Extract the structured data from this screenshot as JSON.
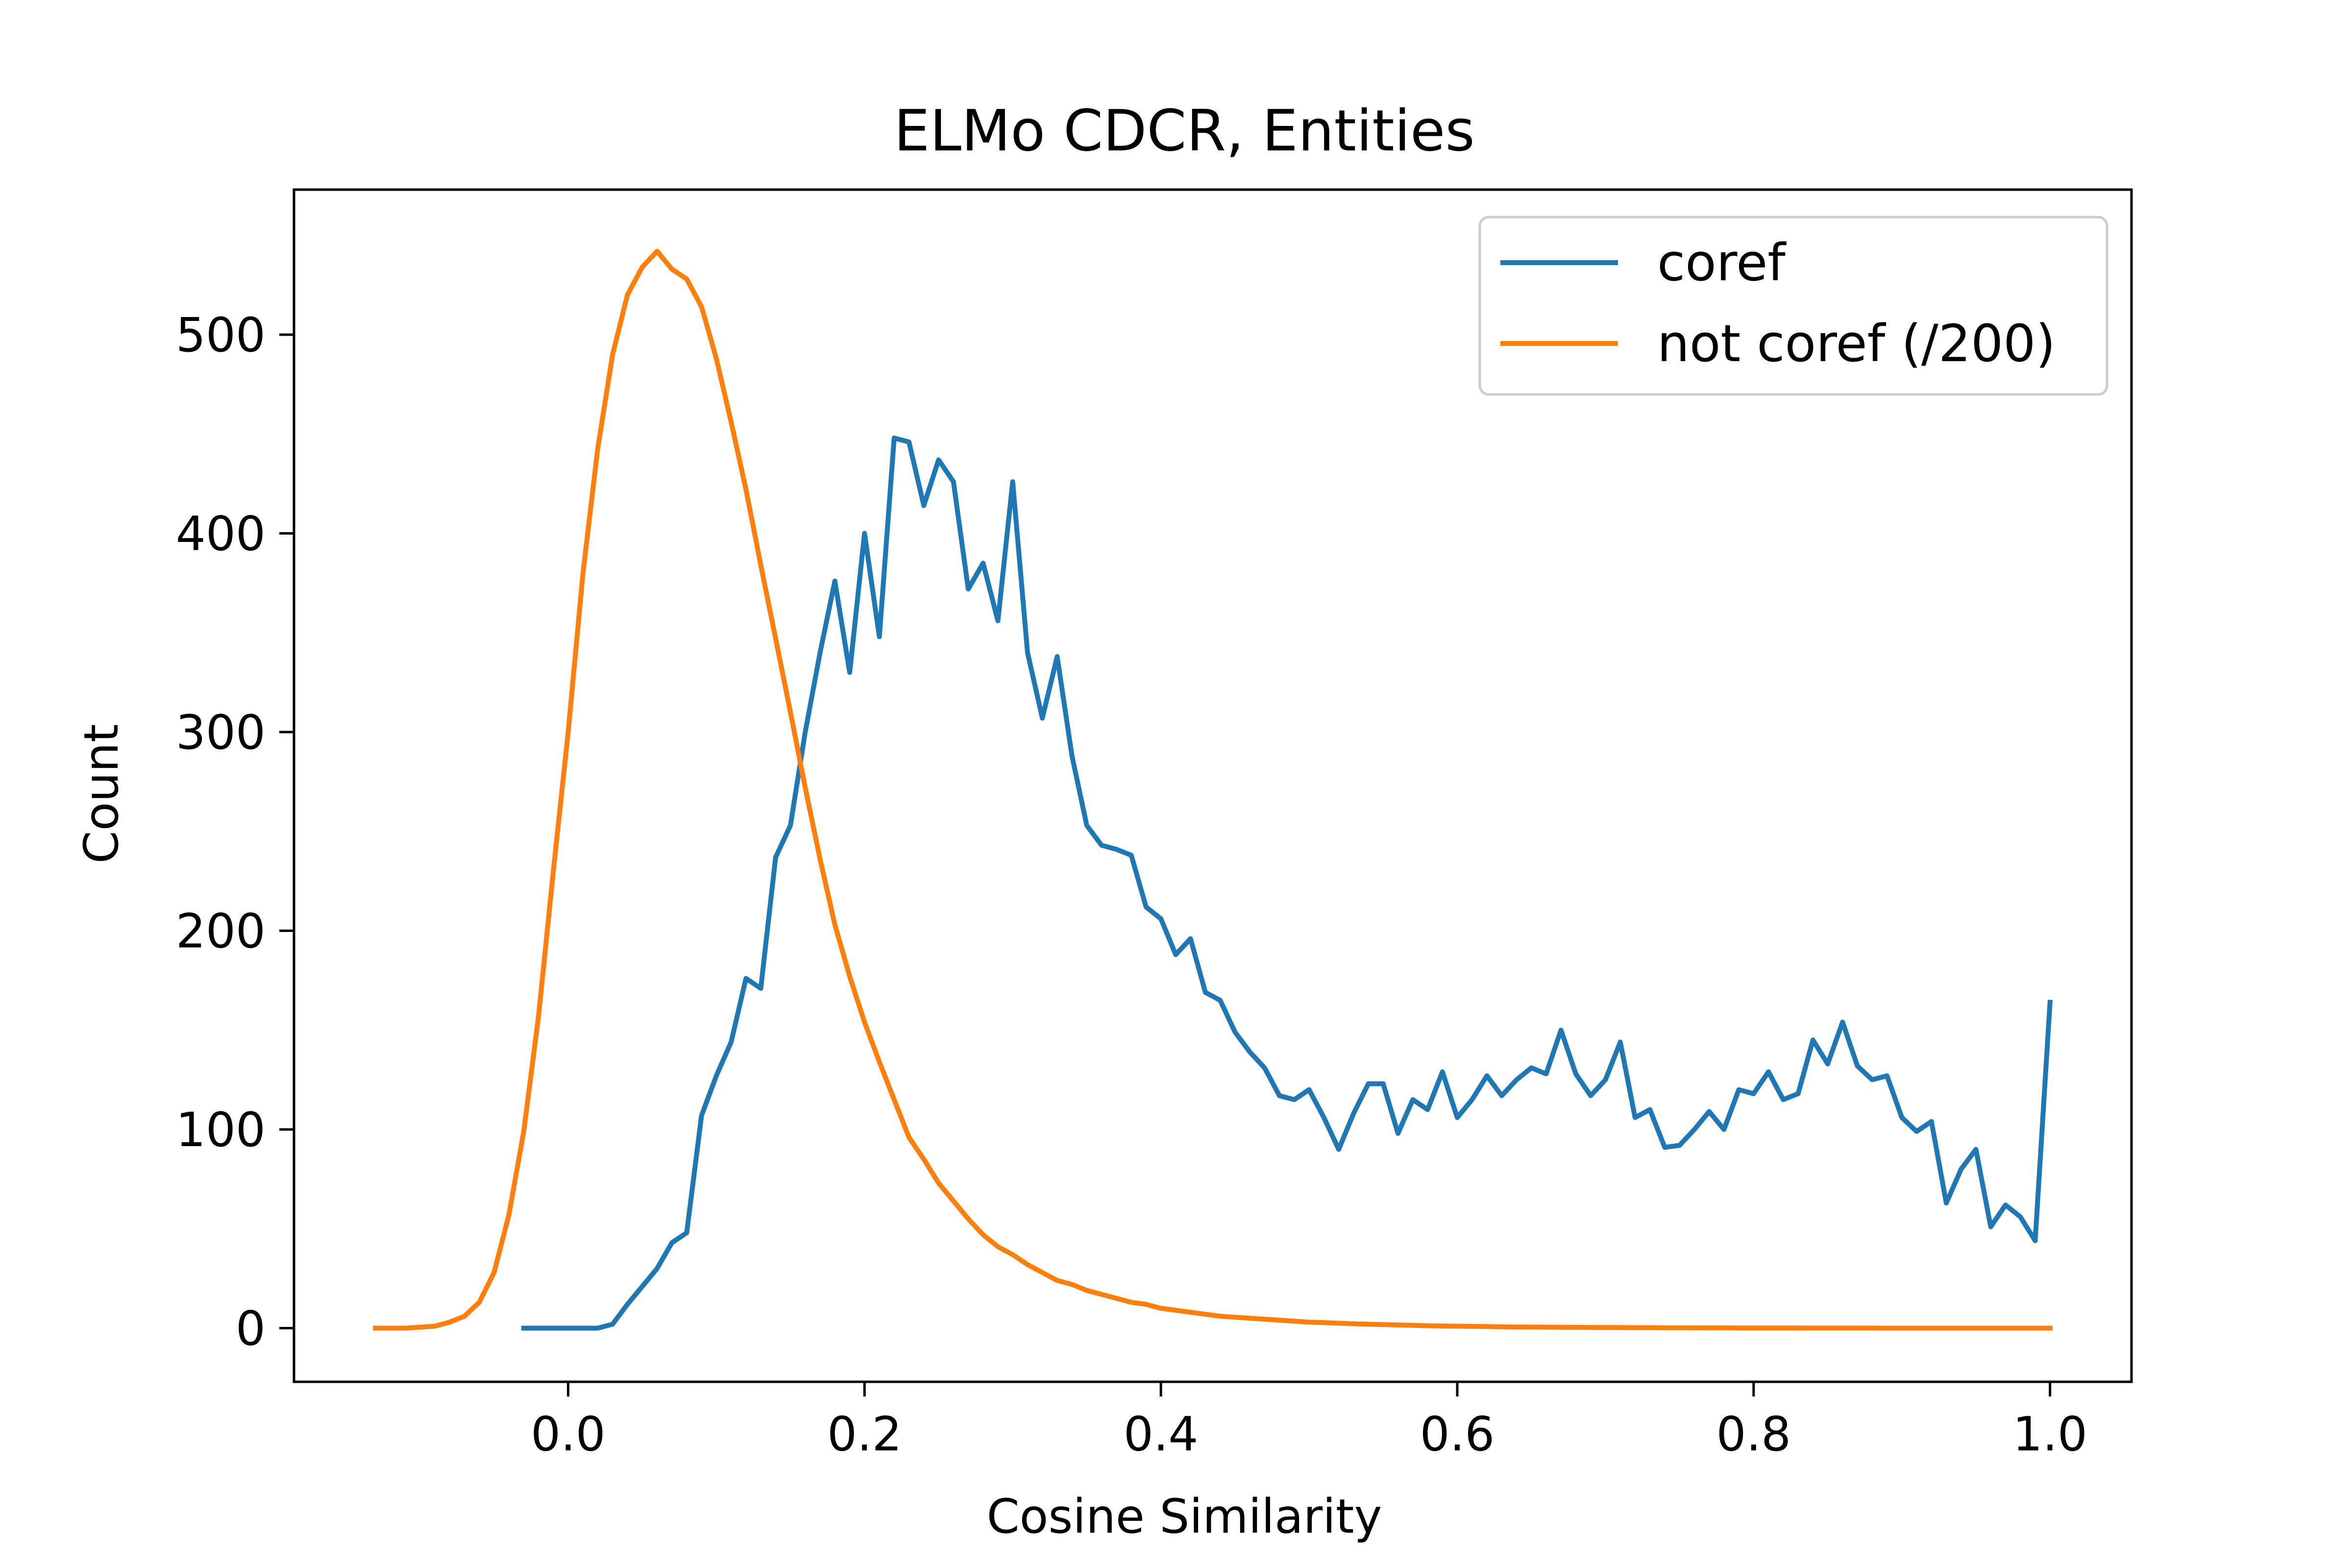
{
  "chart_data": {
    "type": "line",
    "title": "ELMo CDCR, Entities",
    "xlabel": "Cosine Similarity",
    "ylabel": "Count",
    "xlim": [
      -0.185,
      1.055
    ],
    "ylim": [
      -27,
      573
    ],
    "xticks": [
      0.0,
      0.2,
      0.4,
      0.6,
      0.8,
      1.0
    ],
    "xtick_labels": [
      "0.0",
      "0.2",
      "0.4",
      "0.6",
      "0.8",
      "1.0"
    ],
    "yticks": [
      0,
      100,
      200,
      300,
      400,
      500
    ],
    "ytick_labels": [
      "0",
      "100",
      "200",
      "300",
      "400",
      "500"
    ],
    "grid": false,
    "legend_position": "top-right",
    "series": [
      {
        "name": "coref",
        "color": "#1f77b4",
        "x": [
          -0.03,
          -0.02,
          -0.01,
          0.0,
          0.01,
          0.02,
          0.03,
          0.04,
          0.05,
          0.06,
          0.07,
          0.08,
          0.09,
          0.1,
          0.11,
          0.12,
          0.13,
          0.14,
          0.15,
          0.16,
          0.17,
          0.18,
          0.19,
          0.2,
          0.21,
          0.22,
          0.23,
          0.24,
          0.25,
          0.26,
          0.27,
          0.28,
          0.29,
          0.3,
          0.31,
          0.32,
          0.33,
          0.34,
          0.35,
          0.36,
          0.37,
          0.38,
          0.39,
          0.4,
          0.41,
          0.42,
          0.43,
          0.44,
          0.45,
          0.46,
          0.47,
          0.48,
          0.49,
          0.5,
          0.51,
          0.52,
          0.53,
          0.54,
          0.55,
          0.56,
          0.57,
          0.58,
          0.59,
          0.6,
          0.61,
          0.62,
          0.63,
          0.64,
          0.65,
          0.66,
          0.67,
          0.68,
          0.69,
          0.7,
          0.71,
          0.72,
          0.73,
          0.74,
          0.75,
          0.76,
          0.77,
          0.78,
          0.79,
          0.8,
          0.81,
          0.82,
          0.83,
          0.84,
          0.85,
          0.86,
          0.87,
          0.88,
          0.89,
          0.9,
          0.91,
          0.92,
          0.93,
          0.94,
          0.95,
          0.96,
          0.97,
          0.98,
          0.99,
          1.0
        ],
        "y": [
          0,
          0,
          0,
          0,
          0,
          0,
          2,
          12,
          21,
          30,
          43,
          48,
          107,
          127,
          144,
          176,
          171,
          237,
          253,
          300,
          340,
          376,
          330,
          400,
          348,
          448,
          446,
          414,
          437,
          426,
          372,
          385,
          356,
          426,
          340,
          307,
          338,
          288,
          253,
          243,
          241,
          238,
          212,
          206,
          188,
          196,
          169,
          165,
          149,
          139,
          131,
          117,
          115,
          120,
          106,
          90,
          108,
          123,
          123,
          98,
          115,
          110,
          129,
          106,
          115,
          127,
          117,
          125,
          131,
          128,
          150,
          128,
          117,
          125,
          144,
          106,
          110,
          91,
          92,
          100,
          109,
          100,
          120,
          118,
          129,
          115,
          118,
          145,
          133,
          154,
          132,
          125,
          127,
          106,
          99,
          104,
          63,
          80,
          90,
          51,
          62,
          56,
          44,
          164
        ]
      },
      {
        "name": "not coref (/200)",
        "color": "#ff7f0e",
        "x": [
          -0.13,
          -0.12,
          -0.11,
          -0.1,
          -0.09,
          -0.08,
          -0.07,
          -0.06,
          -0.05,
          -0.04,
          -0.03,
          -0.02,
          -0.01,
          0.0,
          0.01,
          0.02,
          0.03,
          0.04,
          0.05,
          0.06,
          0.07,
          0.08,
          0.09,
          0.1,
          0.11,
          0.12,
          0.13,
          0.14,
          0.15,
          0.16,
          0.17,
          0.18,
          0.19,
          0.2,
          0.21,
          0.22,
          0.23,
          0.24,
          0.25,
          0.26,
          0.27,
          0.28,
          0.29,
          0.3,
          0.31,
          0.32,
          0.33,
          0.34,
          0.35,
          0.36,
          0.37,
          0.38,
          0.39,
          0.4,
          0.41,
          0.42,
          0.43,
          0.44,
          0.45,
          0.46,
          0.47,
          0.48,
          0.49,
          0.5,
          0.51,
          0.52,
          0.53,
          0.54,
          0.55,
          0.56,
          0.57,
          0.58,
          0.59,
          0.6,
          0.61,
          0.62,
          0.63,
          0.64,
          0.65,
          0.66,
          0.67,
          0.68,
          0.69,
          0.7,
          0.71,
          0.72,
          0.73,
          0.74,
          0.75,
          0.76,
          0.77,
          0.78,
          0.79,
          0.8,
          0.81,
          0.82,
          0.83,
          0.84,
          0.85,
          0.86,
          0.87,
          0.88,
          0.89,
          0.9,
          0.91,
          0.92,
          0.93,
          0.94,
          0.95,
          0.96,
          0.97,
          0.98,
          0.99,
          1.0
        ],
        "y": [
          0,
          0,
          0,
          0.5,
          1,
          3,
          6,
          13,
          28,
          57,
          99,
          157,
          230,
          300,
          380,
          443,
          490,
          520,
          534,
          542,
          533,
          528,
          514,
          488,
          456,
          422,
          384,
          347,
          310,
          272,
          236,
          203,
          177,
          154,
          134,
          115,
          96,
          85,
          73,
          64,
          55,
          47,
          41,
          37,
          32,
          28,
          24,
          22,
          19,
          17,
          15,
          13,
          12,
          10,
          9,
          8,
          7,
          6,
          5.5,
          5,
          4.5,
          4,
          3.5,
          3,
          2.8,
          2.5,
          2.2,
          2,
          1.8,
          1.6,
          1.4,
          1.2,
          1.1,
          1,
          0.9,
          0.8,
          0.7,
          0.6,
          0.55,
          0.5,
          0.45,
          0.4,
          0.35,
          0.3,
          0.3,
          0.25,
          0.25,
          0.2,
          0.2,
          0.2,
          0.15,
          0.15,
          0.1,
          0.1,
          0.1,
          0.1,
          0.1,
          0.05,
          0.05,
          0.05,
          0.05,
          0.05,
          0,
          0,
          0,
          0,
          0,
          0,
          0,
          0,
          0,
          0,
          0,
          0
        ]
      }
    ]
  }
}
